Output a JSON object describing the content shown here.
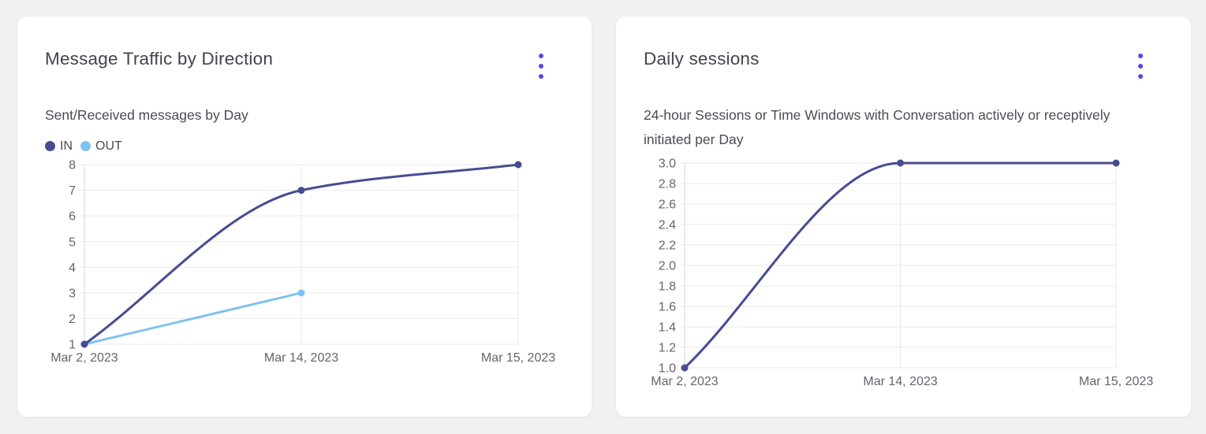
{
  "window": {
    "background": "#f1f1f4",
    "accent": "#5847ec"
  },
  "icons": {
    "card_menu": "kebab-vertical-dots",
    "legend_marker": "filled-circle"
  },
  "chart_data": [
    {
      "type": "line",
      "title": "Message Traffic by Direction",
      "subtitle": "Sent/Received messages by Day",
      "categories": [
        "Mar 2, 2023",
        "Mar 14, 2023",
        "Mar 15, 2023"
      ],
      "series": [
        {
          "name": "IN",
          "color": "#474c92",
          "values": [
            1,
            7,
            8
          ]
        },
        {
          "name": "OUT",
          "color": "#7ec2f0",
          "values": [
            1,
            3,
            null
          ]
        }
      ],
      "y_ticks": [
        "8",
        "7",
        "6",
        "5",
        "4",
        "3",
        "2",
        "1"
      ],
      "ylim": [
        1,
        8
      ],
      "xlabel": "",
      "ylabel": "",
      "grid": true,
      "smooth": true,
      "legend_position": "top-left"
    },
    {
      "type": "line",
      "title": "Daily sessions",
      "subtitle": "24-hour Sessions or Time Windows with Conversation actively or receptively initiated per Day",
      "categories": [
        "Mar 2, 2023",
        "Mar 14, 2023",
        "Mar 15, 2023"
      ],
      "series": [
        {
          "name": "sessions",
          "color": "#474c92",
          "values": [
            1.0,
            3.0,
            3.0
          ]
        }
      ],
      "y_ticks": [
        "3.0",
        "2.8",
        "2.6",
        "2.4",
        "2.2",
        "2.0",
        "1.8",
        "1.6",
        "1.4",
        "1.2",
        "1.0"
      ],
      "ylim": [
        1.0,
        3.0
      ],
      "xlabel": "",
      "ylabel": "",
      "grid": true,
      "smooth": true,
      "legend_position": "none"
    }
  ]
}
